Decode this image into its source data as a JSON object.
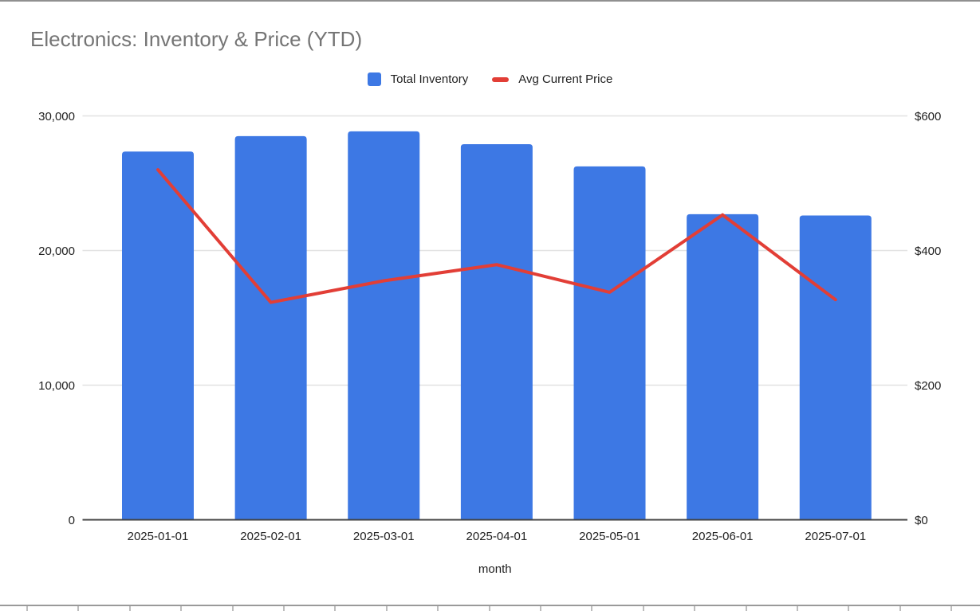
{
  "title": "Electronics: Inventory & Price (YTD)",
  "legend": [
    {
      "label": "Total Inventory",
      "swatch": "square-icon",
      "color": "#3d78e4"
    },
    {
      "label": "Avg Current Price",
      "swatch": "dash-icon",
      "color": "#e23e36"
    }
  ],
  "chart_data": {
    "type": "bar",
    "subtype": "combo bar+line, dual axis",
    "title": "Electronics: Inventory & Price (YTD)",
    "xlabel": "month",
    "categories": [
      "2025-01-01",
      "2025-02-01",
      "2025-03-01",
      "2025-04-01",
      "2025-05-01",
      "2025-06-01",
      "2025-07-01"
    ],
    "series": [
      {
        "name": "Total Inventory",
        "type": "bar",
        "axis": "left",
        "color": "#3d78e4",
        "values": [
          27350,
          28500,
          28850,
          27900,
          26250,
          22700,
          22600
        ]
      },
      {
        "name": "Avg Current Price",
        "type": "line",
        "axis": "right",
        "color": "#e23e36",
        "values": [
          520,
          323,
          355,
          379,
          338,
          453,
          327
        ]
      }
    ],
    "left_axis": {
      "tick_labels": [
        "0",
        "10,000",
        "20,000",
        "30,000"
      ],
      "tick_values": [
        0,
        10000,
        20000,
        30000
      ],
      "min": 0,
      "max": 30000
    },
    "right_axis": {
      "tick_labels": [
        "$0",
        "$200",
        "$400",
        "$600"
      ],
      "tick_values": [
        0,
        200,
        400,
        600
      ],
      "min": 0,
      "max": 600
    },
    "grid": true,
    "legend_position": "top"
  },
  "colors": {
    "grid_line": "#e2e2e2",
    "axis_line": "#424242",
    "title_text": "#757575",
    "tick_text": "#1f1f1f",
    "sheet_edge_line": "#9a9a9a",
    "sheet_cell_tick": "#bdbdbd",
    "top_border": "#909090"
  }
}
